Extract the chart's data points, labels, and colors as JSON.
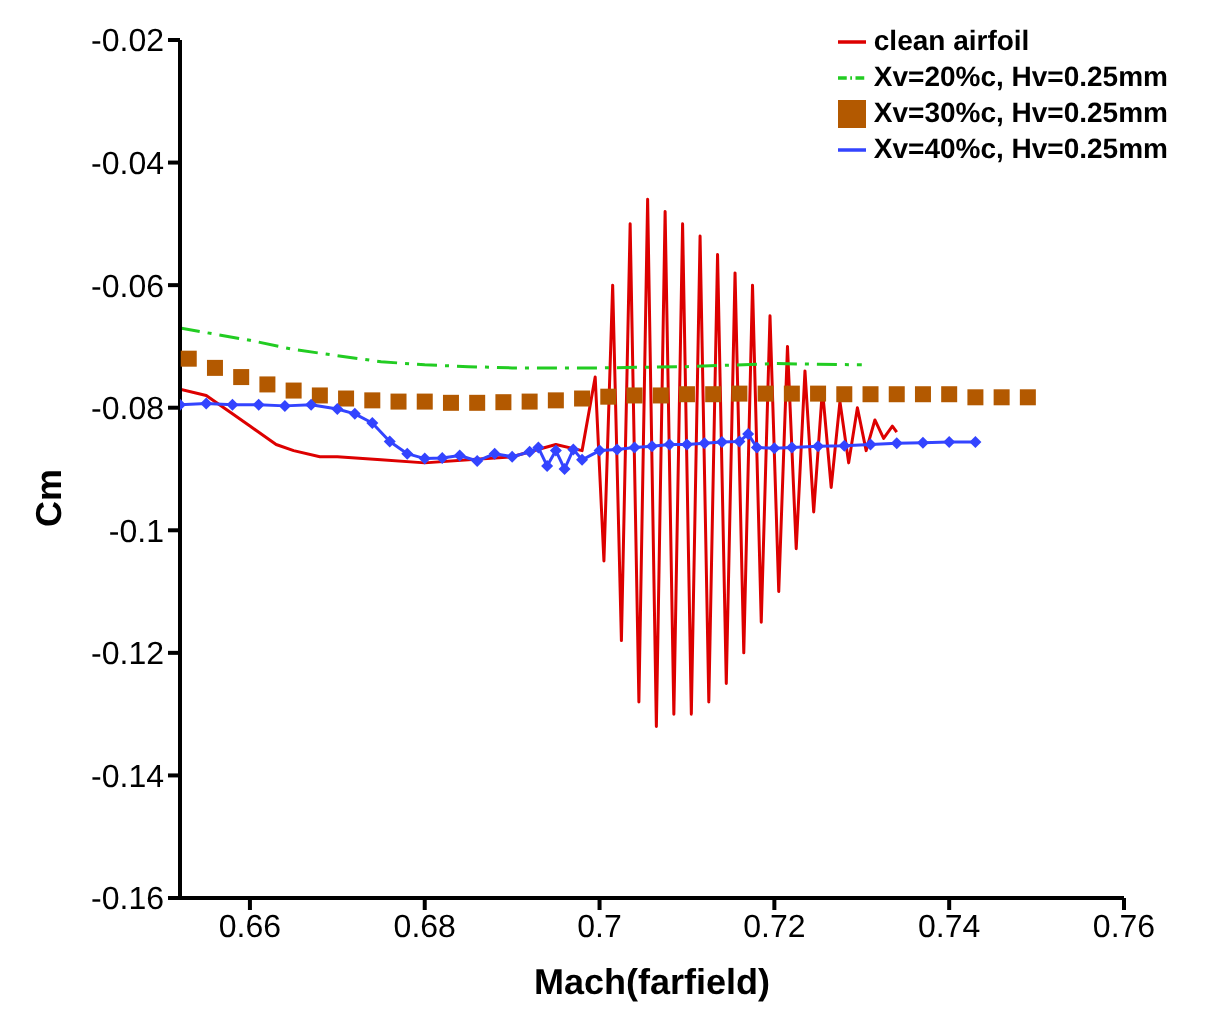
{
  "chart_data": {
    "type": "line",
    "xlabel": "Mach(farfield)",
    "ylabel": "Cm",
    "xlim": [
      0.652,
      0.76
    ],
    "xticks": [
      0.66,
      0.68,
      {
        "value": 0.7,
        "label": "0.7"
      },
      0.72,
      0.74,
      0.76
    ],
    "ylim": [
      -0.16,
      -0.02
    ],
    "yticks": [
      -0.16,
      -0.14,
      {
        "value": -0.12,
        "label": "-0.12"
      },
      {
        "value": -0.1,
        "label": "-0.1"
      },
      -0.08,
      -0.06,
      -0.04,
      -0.02
    ],
    "grid": false,
    "legend": "top right",
    "series": [
      {
        "name": "clean airfoil",
        "color": "#dd0000",
        "type": "line",
        "marker": "none",
        "line_style": "solid",
        "x": [
          0.652,
          0.655,
          0.658,
          0.66,
          0.663,
          0.665,
          0.668,
          0.67,
          0.675,
          0.68,
          0.685,
          0.69,
          0.695,
          0.698,
          0.6995,
          0.7005,
          0.7015,
          0.7025,
          0.7035,
          0.7045,
          0.7055,
          0.7065,
          0.7075,
          0.7085,
          0.7095,
          0.7105,
          0.7115,
          0.7125,
          0.7135,
          0.7145,
          0.7155,
          0.7165,
          0.7175,
          0.7185,
          0.7195,
          0.7205,
          0.7215,
          0.7225,
          0.7235,
          0.7245,
          0.7255,
          0.7265,
          0.7275,
          0.7285,
          0.7295,
          0.7305,
          0.7315,
          0.7325,
          0.7335,
          0.734
        ],
        "values": [
          -0.077,
          -0.078,
          -0.081,
          -0.083,
          -0.086,
          -0.087,
          -0.088,
          -0.088,
          -0.0885,
          -0.089,
          -0.0885,
          -0.088,
          -0.086,
          -0.087,
          -0.075,
          -0.105,
          -0.06,
          -0.118,
          -0.05,
          -0.128,
          -0.046,
          -0.132,
          -0.048,
          -0.13,
          -0.05,
          -0.13,
          -0.052,
          -0.128,
          -0.055,
          -0.125,
          -0.058,
          -0.12,
          -0.06,
          -0.115,
          -0.065,
          -0.11,
          -0.07,
          -0.103,
          -0.074,
          -0.097,
          -0.077,
          -0.093,
          -0.079,
          -0.089,
          -0.08,
          -0.087,
          -0.082,
          -0.085,
          -0.083,
          -0.084
        ]
      },
      {
        "name": "Xv=20%c, Hv=0.25mm",
        "color": "#22cc22",
        "type": "line",
        "marker": "none",
        "line_style": "dashed",
        "x": [
          0.652,
          0.66,
          0.665,
          0.67,
          0.675,
          0.68,
          0.685,
          0.69,
          0.7,
          0.71,
          0.72,
          0.73
        ],
        "values": [
          -0.067,
          -0.069,
          -0.0705,
          -0.0715,
          -0.0725,
          -0.073,
          -0.0733,
          -0.0735,
          -0.0735,
          -0.0733,
          -0.0728,
          -0.073
        ]
      },
      {
        "name": "Xv=30%c, Hv=0.25mm",
        "color": "#b35900",
        "type": "scatter",
        "marker": "square",
        "x": [
          0.653,
          0.656,
          0.659,
          0.662,
          0.665,
          0.668,
          0.671,
          0.674,
          0.677,
          0.68,
          0.683,
          0.686,
          0.689,
          0.692,
          0.695,
          0.698,
          0.701,
          0.704,
          0.707,
          0.71,
          0.713,
          0.716,
          0.719,
          0.722,
          0.725,
          0.728,
          0.731,
          0.734,
          0.737,
          0.74,
          0.743,
          0.746,
          0.749
        ],
        "values": [
          -0.072,
          -0.0735,
          -0.075,
          -0.0762,
          -0.0772,
          -0.078,
          -0.0785,
          -0.0788,
          -0.079,
          -0.079,
          -0.0792,
          -0.0792,
          -0.0791,
          -0.079,
          -0.0788,
          -0.0785,
          -0.0782,
          -0.078,
          -0.078,
          -0.0778,
          -0.0778,
          -0.0777,
          -0.0777,
          -0.0777,
          -0.0777,
          -0.0778,
          -0.0778,
          -0.0778,
          -0.0778,
          -0.0778,
          -0.0783,
          -0.0783,
          -0.0783
        ]
      },
      {
        "name": "Xv=40%c, Hv=0.25mm",
        "color": "#3344ff",
        "type": "line",
        "marker": "diamond",
        "line_style": "solid",
        "x": [
          0.652,
          0.655,
          0.658,
          0.661,
          0.664,
          0.667,
          0.67,
          0.672,
          0.674,
          0.676,
          0.678,
          0.68,
          0.682,
          0.684,
          0.686,
          0.688,
          0.69,
          0.692,
          0.693,
          0.694,
          0.695,
          0.696,
          0.697,
          0.698,
          0.7,
          0.702,
          0.704,
          0.706,
          0.708,
          0.71,
          0.712,
          0.714,
          0.716,
          0.717,
          0.718,
          0.72,
          0.722,
          0.725,
          0.728,
          0.731,
          0.734,
          0.737,
          0.74,
          0.743
        ],
        "values": [
          -0.0795,
          -0.0793,
          -0.0795,
          -0.0795,
          -0.0797,
          -0.0795,
          -0.0802,
          -0.081,
          -0.0825,
          -0.0855,
          -0.0875,
          -0.0883,
          -0.0882,
          -0.0878,
          -0.0887,
          -0.0875,
          -0.088,
          -0.0872,
          -0.0865,
          -0.0895,
          -0.087,
          -0.09,
          -0.0868,
          -0.0885,
          -0.087,
          -0.0868,
          -0.0865,
          -0.0863,
          -0.086,
          -0.086,
          -0.0858,
          -0.0856,
          -0.0855,
          -0.0843,
          -0.0865,
          -0.0866,
          -0.0865,
          -0.0863,
          -0.0862,
          -0.086,
          -0.0858,
          -0.0857,
          -0.0856,
          -0.0856
        ]
      }
    ]
  }
}
